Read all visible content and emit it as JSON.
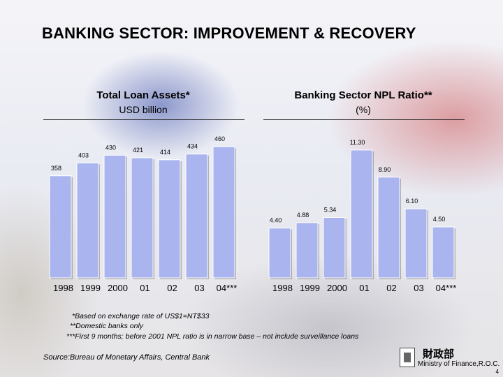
{
  "title": "BANKING SECTOR: IMPROVEMENT & RECOVERY",
  "chart_data": [
    {
      "type": "bar",
      "title": "Total Loan Assets*",
      "subtitle": "USD billion",
      "categories": [
        "1998",
        "1999",
        "2000",
        "01",
        "02",
        "03",
        "04***"
      ],
      "values": [
        358,
        403,
        430,
        421,
        414,
        434,
        460
      ],
      "value_labels": [
        "358",
        "403",
        "430",
        "421",
        "414",
        "434",
        "460"
      ],
      "ylim": [
        0,
        470
      ],
      "bar_color": "#aab4ee",
      "grid": false
    },
    {
      "type": "bar",
      "title": "Banking Sector NPL Ratio**",
      "subtitle": "(%)",
      "categories": [
        "1998",
        "1999",
        "2000",
        "01",
        "02",
        "03",
        "04***"
      ],
      "values": [
        4.4,
        4.88,
        5.34,
        11.3,
        8.9,
        6.1,
        4.5
      ],
      "value_labels": [
        "4.40",
        "4.88",
        "5.34",
        "11.30",
        "8.90",
        "6.10",
        "4.50"
      ],
      "ylim": [
        0,
        11.6
      ],
      "bar_color": "#aab4ee",
      "grid": false
    }
  ],
  "footnotes": [
    "*Based on exchange rate of US$1=NT$33",
    "**Domestic banks only",
    "***First 9 months; before 2001 NPL ratio is in narrow base – not include surveillance loans"
  ],
  "source": "Source:Bureau of Monetary Affairs, Central Bank",
  "ministry": {
    "name_cn": "財政部",
    "name_en": "Ministry of Finance,R.O.C."
  },
  "page_number": "4"
}
